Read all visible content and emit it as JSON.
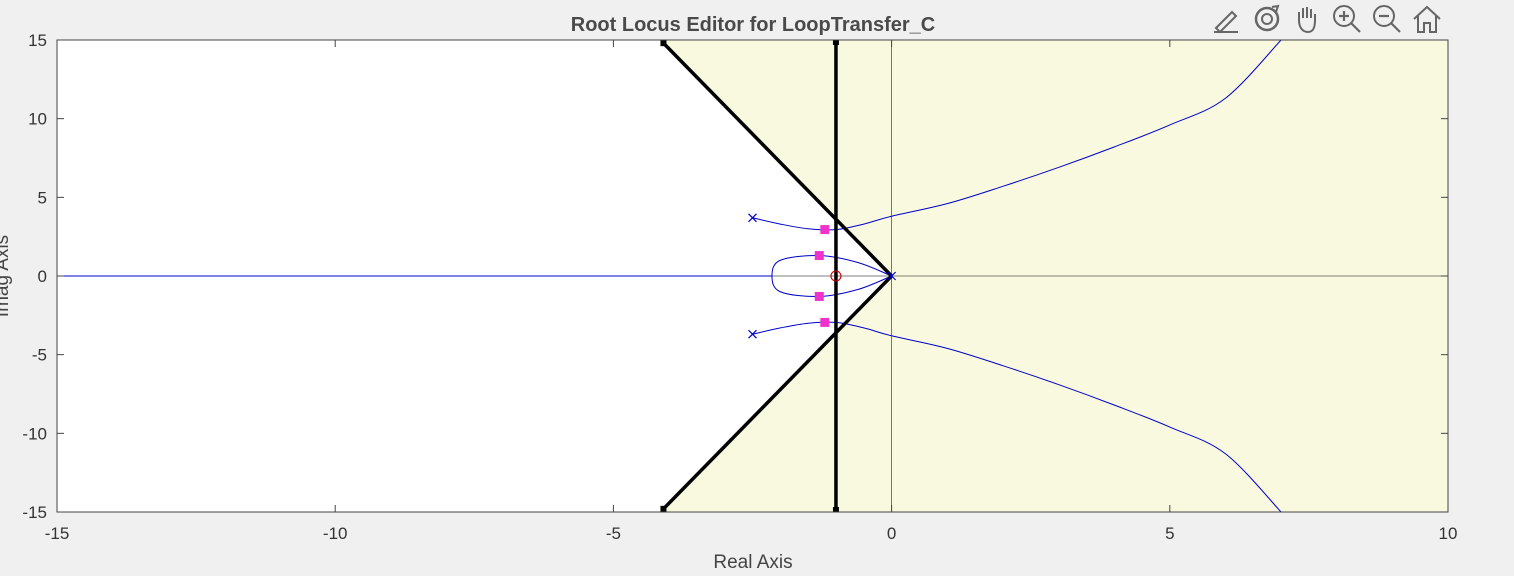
{
  "toolbar": {
    "tools": [
      {
        "name": "edit-icon"
      },
      {
        "name": "rotate-icon"
      },
      {
        "name": "pan-icon"
      },
      {
        "name": "zoom-in-icon"
      },
      {
        "name": "zoom-out-icon"
      },
      {
        "name": "home-icon"
      }
    ]
  },
  "colors": {
    "background": "#f0f0f0",
    "plot_area": "#ffffff",
    "region_fill": "#f9f9e0",
    "locus": "#0000cc",
    "requirement": "#000000",
    "closed_loop_pole": "#ee33cc",
    "zero": "#cc0000"
  },
  "chart_data": {
    "type": "scatter",
    "title": "Root Locus Editor for LoopTransfer_C",
    "xlabel": "Real Axis",
    "ylabel": "Imag Axis",
    "xlim": [
      -15,
      10
    ],
    "ylim": [
      -15,
      15
    ],
    "xticks": [
      -15,
      -10,
      -5,
      0,
      5,
      10
    ],
    "yticks": [
      -15,
      -10,
      -5,
      0,
      5,
      10,
      15
    ],
    "grid": false,
    "open_loop_poles": [
      [
        -2.5,
        3.7
      ],
      [
        -2.5,
        -3.7
      ],
      [
        0,
        0
      ]
    ],
    "open_loop_zeros": [
      [
        -1.0,
        0
      ]
    ],
    "closed_loop_poles": [
      [
        -1.2,
        2.95
      ],
      [
        -1.2,
        -2.95
      ],
      [
        -1.3,
        1.3
      ],
      [
        -1.3,
        -1.3
      ]
    ],
    "design_requirements": {
      "settling_time_boundary_real": -1.0,
      "damping_lines": [
        {
          "from": [
            0,
            0
          ],
          "to": [
            -4.1,
            14.8
          ]
        },
        {
          "from": [
            0,
            0
          ],
          "to": [
            -4.1,
            -14.8
          ]
        }
      ],
      "shaded_region": "allowed region right of damping boundary"
    },
    "locus_branches": [
      {
        "name": "branch-upper",
        "points": [
          [
            -2.5,
            3.7
          ],
          [
            -2.0,
            3.3
          ],
          [
            -1.5,
            3.0
          ],
          [
            -1.0,
            2.95
          ],
          [
            -0.5,
            3.3
          ],
          [
            0,
            3.8
          ],
          [
            1,
            4.6
          ],
          [
            2,
            5.7
          ],
          [
            3,
            6.9
          ],
          [
            4,
            8.2
          ],
          [
            5,
            9.6
          ],
          [
            6,
            11.3
          ],
          [
            7,
            15.0
          ]
        ]
      },
      {
        "name": "branch-lower",
        "points": [
          [
            -2.5,
            -3.7
          ],
          [
            -2.0,
            -3.3
          ],
          [
            -1.5,
            -3.0
          ],
          [
            -1.0,
            -2.95
          ],
          [
            -0.5,
            -3.3
          ],
          [
            0,
            -3.8
          ],
          [
            1,
            -4.6
          ],
          [
            2,
            -5.7
          ],
          [
            3,
            -6.9
          ],
          [
            4,
            -8.2
          ],
          [
            5,
            -9.6
          ],
          [
            6,
            -11.3
          ],
          [
            7,
            -15.0
          ]
        ]
      },
      {
        "name": "branch-loop",
        "points": [
          [
            0,
            0
          ],
          [
            -0.6,
            0.85
          ],
          [
            -1.3,
            1.3
          ],
          [
            -2.0,
            1.0
          ],
          [
            -2.15,
            0
          ],
          [
            -2.0,
            -1.0
          ],
          [
            -1.3,
            -1.3
          ],
          [
            -0.6,
            -0.85
          ],
          [
            0,
            0
          ]
        ]
      },
      {
        "name": "branch-real-axis",
        "points": [
          [
            -15,
            0
          ],
          [
            -2.15,
            0
          ]
        ]
      }
    ]
  }
}
